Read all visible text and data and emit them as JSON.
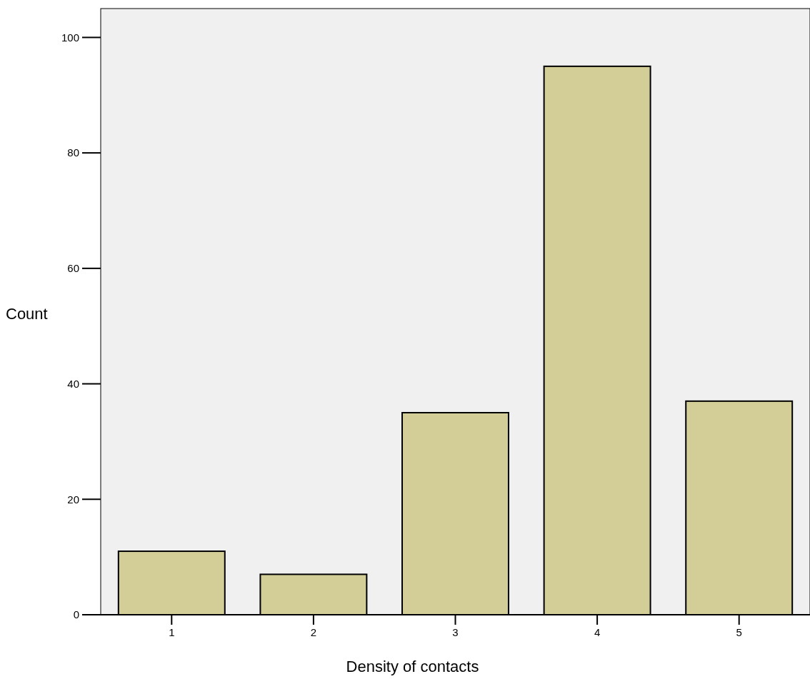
{
  "chart_data": {
    "type": "bar",
    "xlabel": "Density of contacts",
    "ylabel": "Count",
    "categories": [
      "1",
      "2",
      "3",
      "4",
      "5"
    ],
    "values": [
      11,
      7,
      35,
      95,
      37
    ],
    "color": "#d3ce98",
    "ylim": [
      0,
      105
    ],
    "yticks": [
      0,
      20,
      40,
      60,
      80,
      100
    ],
    "grid": false
  }
}
